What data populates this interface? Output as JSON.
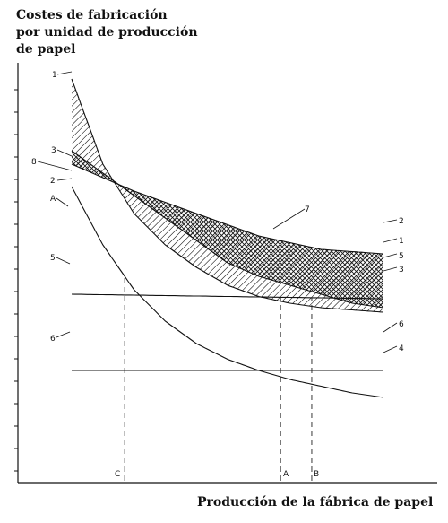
{
  "ylabel_lines": [
    "Costes de fabricación",
    "por unidad de producción",
    "de papel"
  ],
  "chart_data": {
    "type": "line",
    "title": "",
    "ylabel": "Costes de fabricación por unidad de producción de papel",
    "xlabel": "Producción de la fábrica de papel",
    "xlim": [
      0,
      100
    ],
    "ylim": [
      0,
      100
    ],
    "grid": false,
    "series": [
      {
        "name": "1",
        "x": [
          0,
          10,
          20,
          30,
          40,
          50,
          60,
          70,
          80,
          90,
          100
        ],
        "values": [
          90,
          71,
          60,
          53,
          48,
          44,
          41.5,
          40,
          39,
          38.5,
          38
        ]
      },
      {
        "name": "2",
        "x": [
          0,
          20,
          40,
          60,
          80,
          100
        ],
        "values": [
          71,
          65,
          60,
          55,
          52,
          51
        ]
      },
      {
        "name": "3",
        "x": [
          0,
          10,
          20,
          30,
          40,
          50,
          60,
          70,
          80,
          90,
          100
        ],
        "values": [
          74,
          69,
          64,
          59,
          54,
          49,
          46,
          44,
          42,
          40,
          39
        ]
      },
      {
        "name": "4",
        "x": [
          0,
          10,
          20,
          30,
          40,
          50,
          60,
          70,
          80,
          90,
          100
        ],
        "values": [
          66,
          53,
          43,
          36,
          31,
          27.5,
          25,
          23,
          21.5,
          20,
          19
        ]
      },
      {
        "name": "5",
        "x": [
          0,
          100
        ],
        "values": [
          42,
          41
        ]
      },
      {
        "name": "6",
        "x": [
          0,
          100
        ],
        "values": [
          25,
          25
        ]
      },
      {
        "name": "7",
        "x": [
          0
        ],
        "values": [
          0
        ]
      },
      {
        "name": "8",
        "x": [
          0
        ],
        "values": [
          0
        ]
      }
    ],
    "annotations": [
      "1",
      "2",
      "3",
      "4",
      "5",
      "6",
      "7",
      "8",
      "A",
      "B",
      "C"
    ],
    "vertical_markers": [
      {
        "label": "C",
        "x": 17
      },
      {
        "label": "A",
        "x": 67
      },
      {
        "label": "B",
        "x": 77
      }
    ]
  },
  "labels": {
    "l1": "1",
    "l2": "2",
    "l3": "3",
    "l4": "4",
    "l5": "5",
    "l6": "6",
    "l7": "7",
    "l8": "8",
    "lA": "A",
    "lB": "B",
    "lC": "C"
  },
  "xlabel": "Producción de la fábrica de papel"
}
